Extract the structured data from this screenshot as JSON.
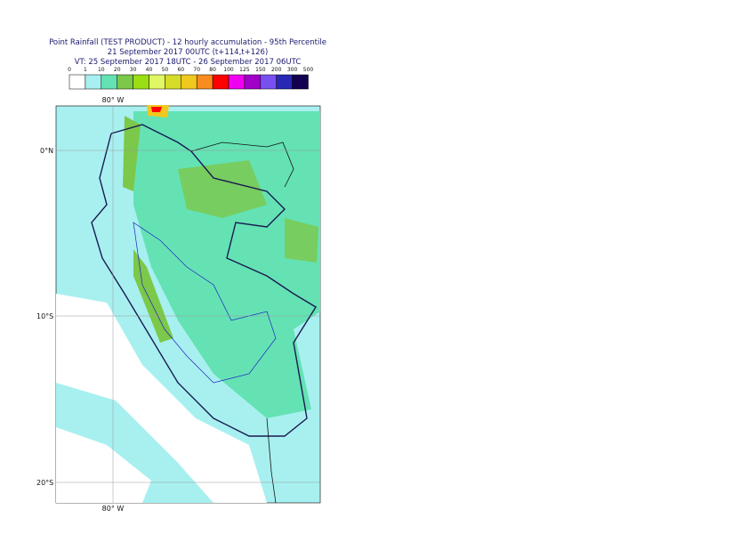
{
  "header": {
    "lines": [
      "Point Rainfall (TEST PRODUCT) - 12 hourly accumulation - 95th Percentile",
      "21 September 2017 00UTC (t+114,t+126)",
      "VT: 25 September 2017 18UTC - 26 September 2017 06UTC"
    ]
  },
  "legend": {
    "thresholds": [
      0,
      1,
      10,
      20,
      30,
      40,
      50,
      60,
      70,
      80,
      100,
      125,
      150,
      200,
      300,
      500
    ],
    "colors": [
      "#ffffff",
      "#a8f0f0",
      "#64e2b4",
      "#7cc84a",
      "#9ade14",
      "#e0f864",
      "#d6dc28",
      "#f0c81e",
      "#f88c1e",
      "#ff0000",
      "#f000f0",
      "#a000c8",
      "#7850f0",
      "#2828b4",
      "#140050"
    ]
  },
  "grid": {
    "lon_labels": [
      "80° W",
      "80° W"
    ],
    "lat_labels": [
      "0°N",
      "10°S",
      "20°S"
    ]
  }
}
